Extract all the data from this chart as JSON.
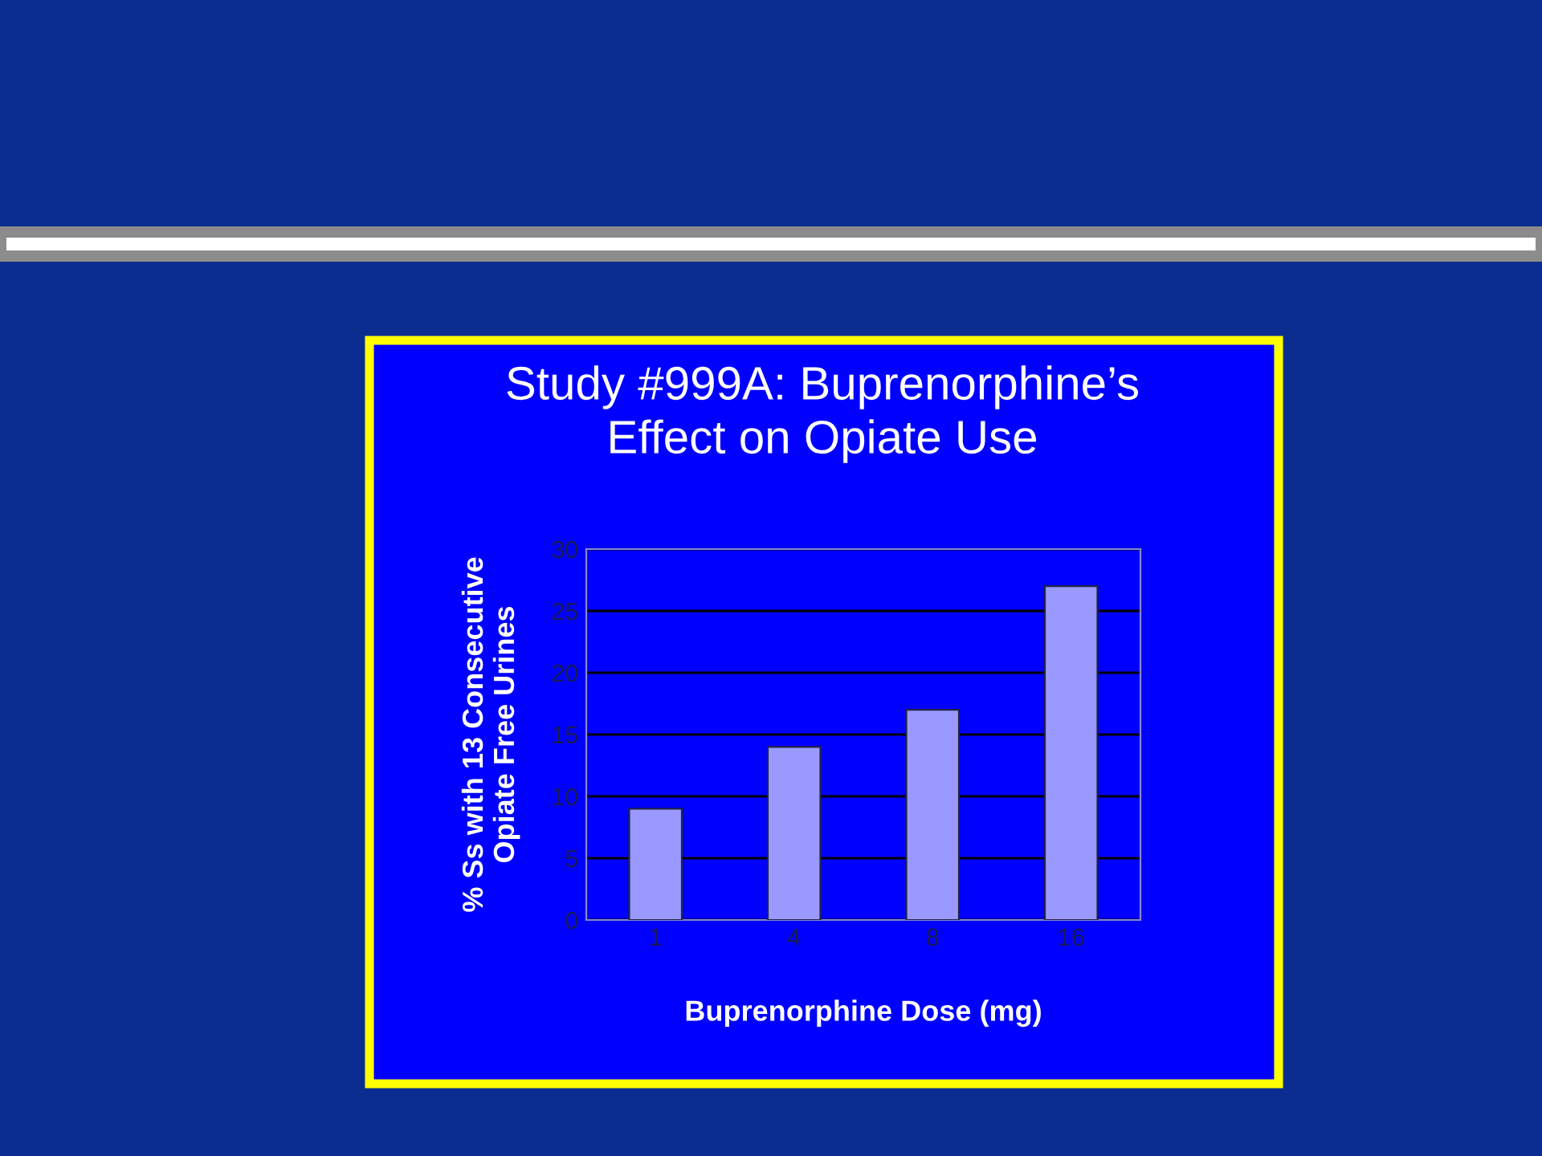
{
  "chart_data": {
    "type": "bar",
    "title": "Study #999A: Buprenorphine’s\nEffect on Opiate Use",
    "xlabel": "Buprenorphine Dose (mg)",
    "ylabel": "% Ss with 13 Consecutive\nOpiate Free Urines",
    "categories": [
      "1",
      "4",
      "8",
      "16"
    ],
    "values": [
      9,
      14,
      17,
      27
    ],
    "color": "#9999ff",
    "ylim": [
      0,
      30
    ],
    "yticks": [
      0,
      5,
      10,
      15,
      20,
      25,
      30
    ],
    "grid": "y"
  }
}
